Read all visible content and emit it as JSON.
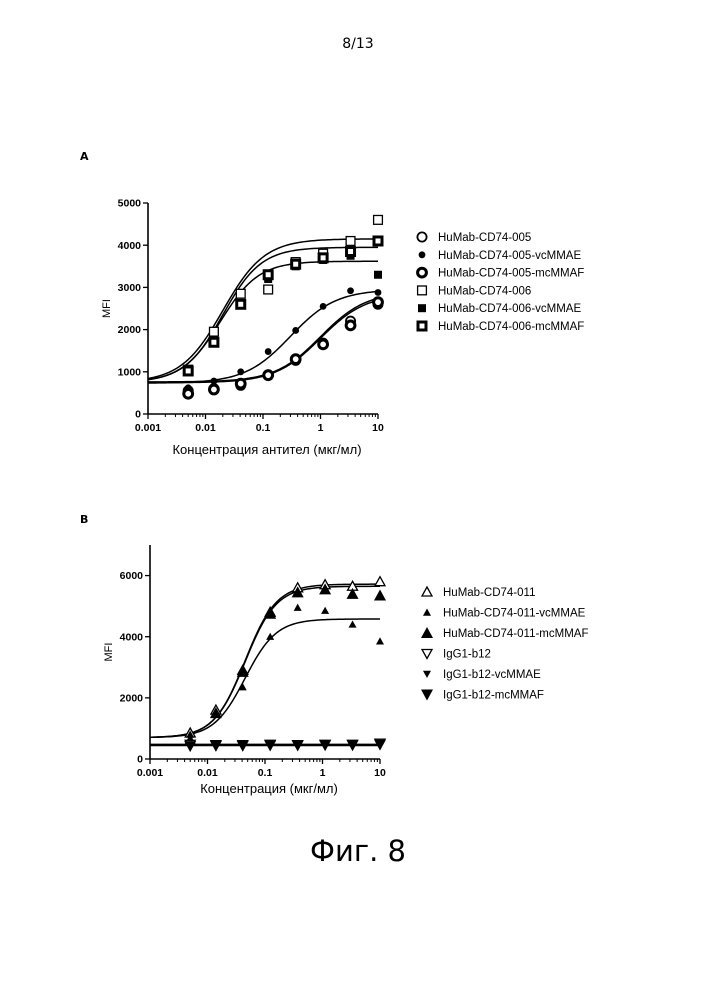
{
  "page": {
    "page_number": "8/13",
    "figure_caption": "Фиг. 8"
  },
  "chart_data": [
    {
      "panel": "A",
      "type": "scatter",
      "xscale": "log",
      "xlabel": "Концентрация антител (мкг/мл)",
      "ylabel": "MFI",
      "xlim": [
        0.001,
        10
      ],
      "ylim": [
        0,
        5000
      ],
      "xticks": [
        "0.001",
        "0.01",
        "0.1",
        "1",
        "10"
      ],
      "yticks": [
        "0",
        "1000",
        "2000",
        "3000",
        "4000",
        "5000"
      ],
      "legend_position": "right",
      "series": [
        {
          "name": "HuMab-CD74-005",
          "marker": "circle-open",
          "x": [
            0.005,
            0.014,
            0.041,
            0.123,
            0.37,
            1.11,
            3.33,
            10
          ],
          "y": [
            550,
            600,
            680,
            930,
            1270,
            1680,
            2200,
            2600
          ],
          "fit": {
            "bottom": 760,
            "top": 2900,
            "ec50": 1.0,
            "hill": 1.1
          }
        },
        {
          "name": "HuMab-CD74-005-vcMMAE",
          "marker": "dot-small",
          "x": [
            0.005,
            0.014,
            0.041,
            0.123,
            0.37,
            1.11,
            3.33,
            10
          ],
          "y": [
            620,
            780,
            1000,
            1480,
            1980,
            2550,
            2920,
            2880
          ],
          "fit": {
            "bottom": 730,
            "top": 2950,
            "ec50": 0.3,
            "hill": 1.1
          }
        },
        {
          "name": "HuMab-CD74-005-mcMMAF",
          "marker": "circle-thick",
          "x": [
            0.005,
            0.014,
            0.041,
            0.123,
            0.37,
            1.11,
            3.33,
            10
          ],
          "y": [
            480,
            580,
            720,
            920,
            1300,
            1650,
            2100,
            2650
          ],
          "fit": {
            "bottom": 740,
            "top": 2850,
            "ec50": 1.0,
            "hill": 1.1
          }
        },
        {
          "name": "HuMab-CD74-006",
          "marker": "square-open",
          "x": [
            0.005,
            0.014,
            0.041,
            0.123,
            0.37,
            1.11,
            3.33,
            10
          ],
          "y": [
            1050,
            1950,
            2850,
            2950,
            3600,
            3800,
            4100,
            4600
          ],
          "fit": {
            "bottom": 750,
            "top": 4150,
            "ec50": 0.02,
            "hill": 1.2
          }
        },
        {
          "name": "HuMab-CD74-006-vcMMAE",
          "marker": "square-filled",
          "x": [
            0.005,
            0.014,
            0.041,
            0.123,
            0.37,
            1.11,
            3.33,
            10
          ],
          "y": [
            1000,
            1750,
            2600,
            3200,
            3500,
            3650,
            3750,
            3300
          ],
          "fit": {
            "bottom": 750,
            "top": 3620,
            "ec50": 0.018,
            "hill": 1.3
          }
        },
        {
          "name": "HuMab-CD74-006-mcMMAF",
          "marker": "square-thick",
          "x": [
            0.005,
            0.014,
            0.041,
            0.123,
            0.37,
            1.11,
            3.33,
            10
          ],
          "y": [
            1020,
            1700,
            2600,
            3300,
            3550,
            3700,
            3850,
            4100
          ],
          "fit": {
            "bottom": 750,
            "top": 3950,
            "ec50": 0.02,
            "hill": 1.3
          }
        }
      ]
    },
    {
      "panel": "B",
      "type": "scatter",
      "xscale": "log",
      "xlabel": "Концентрация (мкг/мл)",
      "ylabel": "MFI",
      "xlim": [
        0.001,
        10
      ],
      "ylim": [
        0,
        7000
      ],
      "xticks": [
        "0.001",
        "0.01",
        "0.1",
        "1",
        "10"
      ],
      "yticks": [
        "0",
        "2000",
        "4000",
        "6000"
      ],
      "legend_position": "right",
      "series": [
        {
          "name": "HuMab-CD74-011",
          "marker": "triangle-open",
          "x": [
            0.005,
            0.014,
            0.041,
            0.123,
            0.37,
            1.11,
            3.33,
            10
          ],
          "y": [
            850,
            1600,
            2900,
            4800,
            5600,
            5700,
            5650,
            5800
          ],
          "fit": {
            "bottom": 700,
            "top": 5720,
            "ec50": 0.045,
            "hill": 1.6
          }
        },
        {
          "name": "HuMab-CD74-011-vcMMAE",
          "marker": "triangle-small",
          "x": [
            0.005,
            0.014,
            0.041,
            0.123,
            0.37,
            1.11,
            3.33,
            10
          ],
          "y": [
            800,
            1450,
            2350,
            4000,
            4950,
            4850,
            4400,
            3850
          ],
          "fit": {
            "bottom": 700,
            "top": 4580,
            "ec50": 0.045,
            "hill": 1.6
          }
        },
        {
          "name": "HuMab-CD74-011-mcMMAF",
          "marker": "triangle-filled",
          "x": [
            0.005,
            0.014,
            0.041,
            0.123,
            0.37,
            1.11,
            3.33,
            10
          ],
          "y": [
            620,
            1500,
            2850,
            4750,
            5450,
            5550,
            5400,
            5350
          ],
          "fit": {
            "bottom": 700,
            "top": 5650,
            "ec50": 0.045,
            "hill": 1.6
          }
        },
        {
          "name": "IgG1-b12",
          "marker": "inv-triangle-open",
          "x": [
            0.005,
            0.014,
            0.041,
            0.123,
            0.37,
            1.11,
            3.33,
            10
          ],
          "y": [
            480,
            470,
            470,
            480,
            470,
            480,
            480,
            520
          ],
          "fit": {
            "bottom": 480,
            "top": 480,
            "ec50": 1,
            "hill": 1
          }
        },
        {
          "name": "IgG1-b12-vcMMAE",
          "marker": "inv-triangle-small",
          "x": [
            0.005,
            0.014,
            0.041,
            0.123,
            0.37,
            1.11,
            3.33,
            10
          ],
          "y": [
            450,
            450,
            440,
            450,
            450,
            460,
            460,
            470
          ],
          "fit": {
            "bottom": 460,
            "top": 460,
            "ec50": 1,
            "hill": 1
          }
        },
        {
          "name": "IgG1-b12-mcMMAF",
          "marker": "inv-triangle-filled",
          "x": [
            0.005,
            0.014,
            0.041,
            0.123,
            0.37,
            1.11,
            3.33,
            10
          ],
          "y": [
            420,
            430,
            430,
            440,
            440,
            450,
            450,
            470
          ],
          "fit": {
            "bottom": 440,
            "top": 440,
            "ec50": 1,
            "hill": 1
          }
        }
      ]
    }
  ]
}
